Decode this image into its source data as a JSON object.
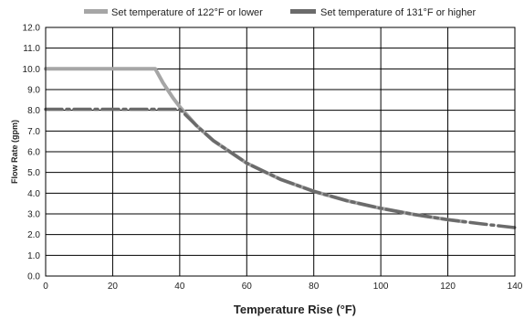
{
  "chart_data": {
    "type": "line",
    "xlabel": "Temperature Rise (°F)",
    "ylabel": "Flow Rate (gpm)",
    "xlim": [
      0,
      140
    ],
    "ylim": [
      0,
      12
    ],
    "x_ticks": [
      0,
      20,
      40,
      60,
      80,
      100,
      120,
      140
    ],
    "y_ticks": [
      "0.0",
      "1.0",
      "2.0",
      "3.0",
      "4.0",
      "5.0",
      "6.0",
      "7.0",
      "8.0",
      "9.0",
      "10.0",
      "11.0",
      "12.0"
    ],
    "grid": true,
    "legend_position": "top",
    "series": [
      {
        "name": "Set temperature of 122°F or lower",
        "color": "#a6a6a6",
        "style": "solid",
        "x": [
          0,
          10,
          20,
          30,
          32.7,
          35,
          38,
          40,
          45,
          50,
          60,
          70,
          80,
          90,
          100,
          110,
          120,
          125
        ],
        "y": [
          10.0,
          10.0,
          10.0,
          10.0,
          10.0,
          9.33,
          8.6,
          8.17,
          7.26,
          6.54,
          5.45,
          4.67,
          4.09,
          3.63,
          3.27,
          2.97,
          2.72,
          2.62
        ]
      },
      {
        "name": "Set temperature of 131°F or higher",
        "color": "#6b6b6b",
        "style": "dash-dot",
        "x": [
          0,
          10,
          20,
          30,
          35,
          40,
          45,
          50,
          60,
          70,
          80,
          90,
          100,
          110,
          120,
          130,
          140
        ],
        "y": [
          8.05,
          8.05,
          8.05,
          8.05,
          8.05,
          8.05,
          7.26,
          6.54,
          5.45,
          4.67,
          4.09,
          3.63,
          3.27,
          2.97,
          2.72,
          2.52,
          2.34
        ]
      }
    ]
  }
}
